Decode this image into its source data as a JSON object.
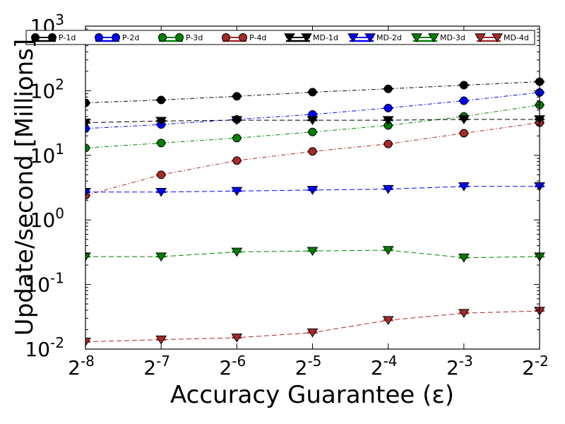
{
  "chart_data": {
    "type": "line",
    "title": "",
    "xlabel": "Accuracy Guarantee (ε)",
    "ylabel": "Update/second [Millions]",
    "x_scale": "log2",
    "y_scale": "log10",
    "x": [
      -8,
      -7,
      -6,
      -5,
      -4,
      -3,
      -2
    ],
    "x_tick_base": "2",
    "x_tick_exponents": [
      "-8",
      "-7",
      "-6",
      "-5",
      "-4",
      "-3",
      "-2"
    ],
    "y_tick_base": "10",
    "y_tick_exponents": [
      "-2",
      "-1",
      "0",
      "1",
      "2",
      "3"
    ],
    "xlim": [
      -8,
      -2
    ],
    "ylim": [
      0.01,
      1000
    ],
    "grid": false,
    "legend_position": "top",
    "series": [
      {
        "name": "P-1d",
        "color": "#000000",
        "marker": "circle",
        "linestyle": "dashdot",
        "values": [
          65,
          72,
          82,
          95,
          107,
          122,
          138
        ]
      },
      {
        "name": "P-2d",
        "color": "#0000ff",
        "marker": "circle",
        "linestyle": "dashdot",
        "values": [
          26,
          30,
          36,
          43,
          54,
          70,
          94
        ]
      },
      {
        "name": "P-3d",
        "color": "#008000",
        "marker": "circle",
        "linestyle": "dashdot",
        "values": [
          13,
          15.5,
          18.5,
          23,
          29,
          40,
          60
        ]
      },
      {
        "name": "P-4d",
        "color": "#a52a2a",
        "marker": "circle",
        "linestyle": "dashdot",
        "values": [
          2.4,
          5,
          8.3,
          11.5,
          15,
          22,
          32
        ]
      },
      {
        "name": "MD-1d",
        "color": "#000000",
        "marker": "triangle",
        "linestyle": "dashed",
        "values": [
          32,
          34,
          35,
          35,
          35,
          36,
          36
        ]
      },
      {
        "name": "MD-2d",
        "color": "#0000ff",
        "marker": "triangle",
        "linestyle": "dashed",
        "values": [
          2.7,
          2.7,
          2.8,
          2.9,
          3.0,
          3.3,
          3.3
        ]
      },
      {
        "name": "MD-3d",
        "color": "#008000",
        "marker": "triangle",
        "linestyle": "dashed",
        "values": [
          0.27,
          0.27,
          0.32,
          0.33,
          0.34,
          0.26,
          0.27
        ]
      },
      {
        "name": "MD-4d",
        "color": "#a52a2a",
        "marker": "triangle",
        "linestyle": "dashed",
        "values": [
          0.013,
          0.014,
          0.015,
          0.018,
          0.028,
          0.036,
          0.039
        ]
      }
    ]
  }
}
